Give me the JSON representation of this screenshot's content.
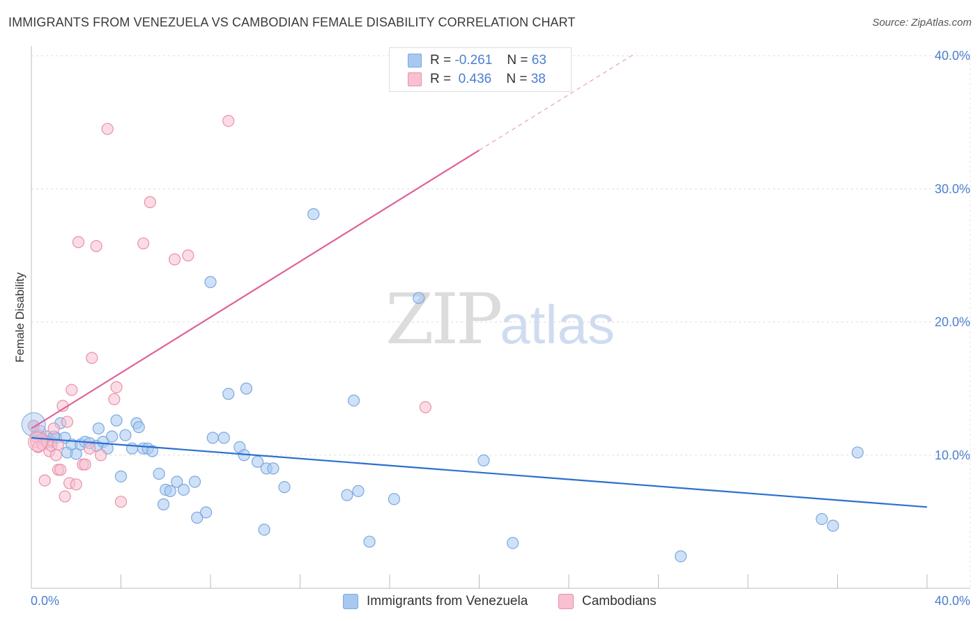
{
  "title": "IMMIGRANTS FROM VENEZUELA VS CAMBODIAN FEMALE DISABILITY CORRELATION CHART",
  "source": "Source: ZipAtlas.com",
  "watermark": {
    "zip": "ZIP",
    "atlas": "atlas"
  },
  "legend": {
    "rows": [
      {
        "r_label": "R =",
        "r_value": "-0.261",
        "n_label": "N =",
        "n_value": "63",
        "color": "#a8c8f0",
        "border": "#7aa8e0"
      },
      {
        "r_label": "R =",
        "r_value": "0.436",
        "n_label": "N =",
        "n_value": "38",
        "color": "#f8c0d0",
        "border": "#e890a8"
      }
    ]
  },
  "bottom_legend": [
    {
      "label": "Immigrants from Venezuela",
      "color": "#a8c8f0",
      "border": "#7aa8e0"
    },
    {
      "label": "Cambodians",
      "color": "#f8c0d0",
      "border": "#e890a8"
    }
  ],
  "chart_data": {
    "type": "scatter",
    "title": "IMMIGRANTS FROM VENEZUELA VS CAMBODIAN FEMALE DISABILITY CORRELATION CHART",
    "xlabel": "",
    "ylabel": "Female Disability",
    "xlim": [
      0,
      40
    ],
    "ylim": [
      0,
      40
    ],
    "x_tick_labels": [
      "0.0%",
      "40.0%"
    ],
    "y_tick_labels": [
      "10.0%",
      "20.0%",
      "30.0%",
      "40.0%"
    ],
    "y_ticks": [
      10,
      20,
      30,
      40
    ],
    "grid": true,
    "series": [
      {
        "name": "Immigrants from Venezuela",
        "color": "#7aa8e0",
        "fill": "#a8c8f0",
        "trend_color": "#2b6fd0",
        "trend": {
          "x0": 0,
          "y0": 11.3,
          "x1": 40,
          "y1": 6.1
        },
        "points": [
          [
            0.1,
            12.2
          ],
          [
            0.3,
            11.5
          ],
          [
            0.5,
            11.2
          ],
          [
            0.7,
            11.4
          ],
          [
            0.9,
            11.0
          ],
          [
            1.1,
            11.3
          ],
          [
            1.3,
            12.4
          ],
          [
            1.5,
            11.3
          ],
          [
            1.6,
            10.2
          ],
          [
            1.8,
            10.8
          ],
          [
            2.0,
            10.1
          ],
          [
            2.2,
            10.8
          ],
          [
            2.4,
            11.0
          ],
          [
            2.6,
            10.9
          ],
          [
            2.9,
            10.7
          ],
          [
            3.0,
            12.0
          ],
          [
            3.2,
            11.0
          ],
          [
            3.4,
            10.5
          ],
          [
            3.6,
            11.4
          ],
          [
            3.8,
            12.6
          ],
          [
            4.0,
            8.4
          ],
          [
            4.2,
            11.5
          ],
          [
            4.5,
            10.5
          ],
          [
            4.7,
            12.4
          ],
          [
            4.8,
            12.1
          ],
          [
            5.0,
            10.5
          ],
          [
            5.2,
            10.5
          ],
          [
            5.4,
            10.3
          ],
          [
            5.7,
            8.6
          ],
          [
            5.9,
            6.3
          ],
          [
            6.0,
            7.4
          ],
          [
            6.2,
            7.3
          ],
          [
            6.5,
            8.0
          ],
          [
            6.8,
            7.4
          ],
          [
            7.3,
            8.0
          ],
          [
            7.4,
            5.3
          ],
          [
            7.8,
            5.7
          ],
          [
            8.0,
            23.0
          ],
          [
            8.1,
            11.3
          ],
          [
            8.6,
            11.3
          ],
          [
            8.8,
            14.6
          ],
          [
            9.3,
            10.6
          ],
          [
            9.5,
            10.0
          ],
          [
            9.6,
            15.0
          ],
          [
            10.1,
            9.5
          ],
          [
            10.4,
            4.4
          ],
          [
            10.5,
            9.0
          ],
          [
            10.8,
            9.0
          ],
          [
            11.3,
            7.6
          ],
          [
            12.6,
            28.1
          ],
          [
            14.1,
            7.0
          ],
          [
            14.4,
            14.1
          ],
          [
            14.6,
            7.3
          ],
          [
            15.1,
            3.5
          ],
          [
            16.2,
            6.7
          ],
          [
            17.3,
            21.8
          ],
          [
            20.2,
            9.6
          ],
          [
            21.5,
            3.4
          ],
          [
            29.0,
            2.4
          ],
          [
            35.3,
            5.2
          ],
          [
            35.8,
            4.7
          ],
          [
            36.9,
            10.2
          ],
          [
            1.0,
            11.4
          ]
        ]
      },
      {
        "name": "Cambodians",
        "color": "#e890a8",
        "fill": "#f8c0d0",
        "trend_color": "#e0609a",
        "trend": {
          "x0": 0,
          "y0": 12.0,
          "x1": 20,
          "y1": 32.9
        },
        "trend_dashed": {
          "x0": 20,
          "y0": 32.9,
          "x1": 27,
          "y1": 40.2
        },
        "points": [
          [
            0.1,
            12.2
          ],
          [
            0.2,
            11.0
          ],
          [
            0.3,
            10.6
          ],
          [
            0.4,
            11.8
          ],
          [
            0.5,
            10.8
          ],
          [
            0.6,
            8.1
          ],
          [
            0.7,
            11.0
          ],
          [
            0.8,
            10.3
          ],
          [
            0.9,
            10.7
          ],
          [
            1.0,
            12.0
          ],
          [
            1.1,
            10.0
          ],
          [
            1.2,
            8.9
          ],
          [
            1.3,
            8.9
          ],
          [
            1.4,
            13.7
          ],
          [
            1.5,
            6.9
          ],
          [
            1.6,
            12.5
          ],
          [
            1.7,
            7.9
          ],
          [
            1.8,
            14.9
          ],
          [
            2.0,
            7.8
          ],
          [
            2.1,
            26.0
          ],
          [
            2.3,
            9.3
          ],
          [
            2.4,
            9.3
          ],
          [
            2.6,
            10.5
          ],
          [
            2.7,
            17.3
          ],
          [
            2.9,
            25.7
          ],
          [
            3.1,
            10.0
          ],
          [
            3.4,
            34.5
          ],
          [
            3.7,
            14.2
          ],
          [
            3.8,
            15.1
          ],
          [
            4.0,
            6.5
          ],
          [
            5.0,
            25.9
          ],
          [
            5.3,
            29.0
          ],
          [
            6.4,
            24.7
          ],
          [
            7.0,
            25.0
          ],
          [
            8.8,
            35.1
          ],
          [
            17.6,
            13.6
          ],
          [
            1.2,
            10.8
          ],
          [
            0.2,
            11.4
          ]
        ]
      }
    ]
  }
}
